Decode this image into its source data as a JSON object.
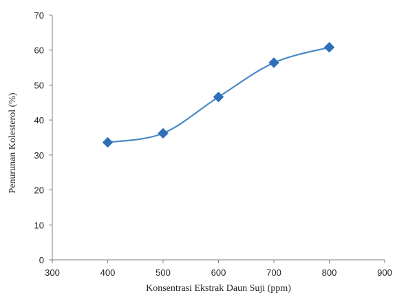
{
  "chart_data": {
    "type": "line",
    "title": "",
    "xlabel": "Konsentrasi Ekstrak Daun Suji (ppm)",
    "ylabel": "Penurunan Kolesterol (%)",
    "xlim": [
      300,
      900
    ],
    "ylim": [
      0,
      70
    ],
    "x_ticks": [
      300,
      400,
      500,
      600,
      700,
      800,
      900
    ],
    "y_ticks": [
      0,
      10,
      20,
      30,
      40,
      50,
      60,
      70
    ],
    "x_tick_labels": [
      "300",
      "400",
      "500",
      "600",
      "700",
      "800",
      "900"
    ],
    "y_tick_labels": [
      "0",
      "10",
      "20",
      "30",
      "40",
      "50",
      "60",
      "70"
    ],
    "grid": false,
    "legend": "none",
    "smooth": true,
    "marker": "diamond",
    "series": [
      {
        "x": [
          400,
          500,
          600,
          700,
          800
        ],
        "y": [
          33.6,
          36.2,
          46.6,
          56.4,
          60.8
        ],
        "line_color": "#4a8ac6",
        "marker_color": "#2f6fb8"
      }
    ]
  }
}
